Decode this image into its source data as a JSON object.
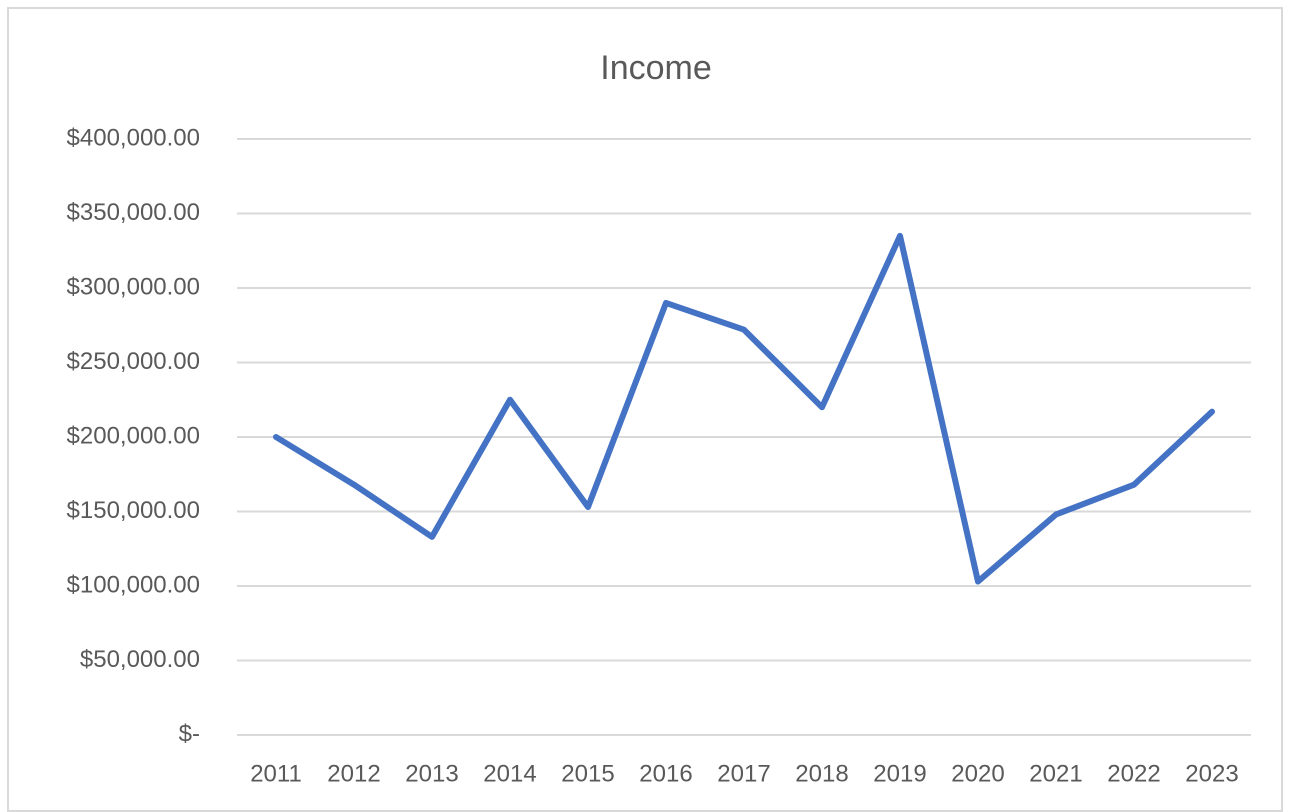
{
  "chart_data": {
    "type": "line",
    "title": "Income",
    "categories": [
      "2011",
      "2012",
      "2013",
      "2014",
      "2015",
      "2016",
      "2017",
      "2018",
      "2019",
      "2020",
      "2021",
      "2022",
      "2023"
    ],
    "series": [
      {
        "name": "Income",
        "color": "#4472c4",
        "values": [
          200000,
          168000,
          133000,
          225000,
          153000,
          290000,
          272000,
          220000,
          335000,
          103000,
          148000,
          168000,
          217000
        ]
      }
    ],
    "ylim": [
      0,
      400000
    ],
    "yticks": [
      {
        "value": 0,
        "label": "$-"
      },
      {
        "value": 50000,
        "label": "$50,000.00"
      },
      {
        "value": 100000,
        "label": "$100,000.00"
      },
      {
        "value": 150000,
        "label": "$150,000.00"
      },
      {
        "value": 200000,
        "label": "$200,000.00"
      },
      {
        "value": 250000,
        "label": "$250,000.00"
      },
      {
        "value": 300000,
        "label": "$300,000.00"
      },
      {
        "value": 350000,
        "label": "$350,000.00"
      },
      {
        "value": 400000,
        "label": "$400,000.00"
      }
    ],
    "grid": true
  }
}
